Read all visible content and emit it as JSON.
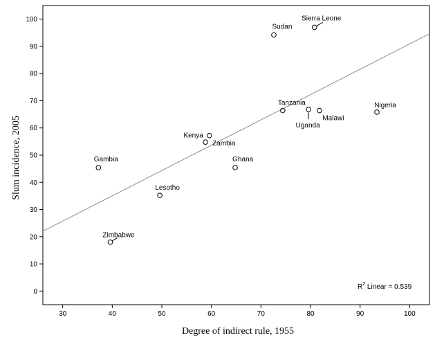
{
  "chart_data": {
    "type": "scatter",
    "xlabel": "Degree of indirect rule, 1955",
    "ylabel": "Slum incidence, 2005",
    "xlim": [
      26,
      104
    ],
    "ylim": [
      -5,
      105
    ],
    "xticks": [
      30,
      40,
      50,
      60,
      70,
      80,
      90,
      100
    ],
    "yticks": [
      0,
      10,
      20,
      30,
      40,
      50,
      60,
      70,
      80,
      90,
      100
    ],
    "points": [
      {
        "label": "Sierra Leone",
        "x": 80.8,
        "y": 97.0
      },
      {
        "label": "Sudan",
        "x": 72.6,
        "y": 94.2
      },
      {
        "label": "Nigeria",
        "x": 93.4,
        "y": 65.8
      },
      {
        "label": "Tanzania",
        "x": 74.4,
        "y": 66.4
      },
      {
        "label": "Uganda",
        "x": 79.6,
        "y": 66.8
      },
      {
        "label": "Malawi",
        "x": 81.8,
        "y": 66.4
      },
      {
        "label": "Kenya",
        "x": 59.6,
        "y": 57.2
      },
      {
        "label": "Zambia",
        "x": 58.8,
        "y": 54.8
      },
      {
        "label": "Gambia",
        "x": 37.2,
        "y": 45.4
      },
      {
        "label": "Ghana",
        "x": 64.8,
        "y": 45.4
      },
      {
        "label": "Lesotho",
        "x": 49.6,
        "y": 35.2
      },
      {
        "label": "Zimbabwe",
        "x": 39.6,
        "y": 18.0
      }
    ],
    "fit_line": {
      "x": [
        26,
        104
      ],
      "y": [
        22.0,
        94.6
      ]
    },
    "r2_label": {
      "prefix": "R",
      "sup": "2",
      "suffix": " Linear = 0.539"
    },
    "grid": false
  }
}
